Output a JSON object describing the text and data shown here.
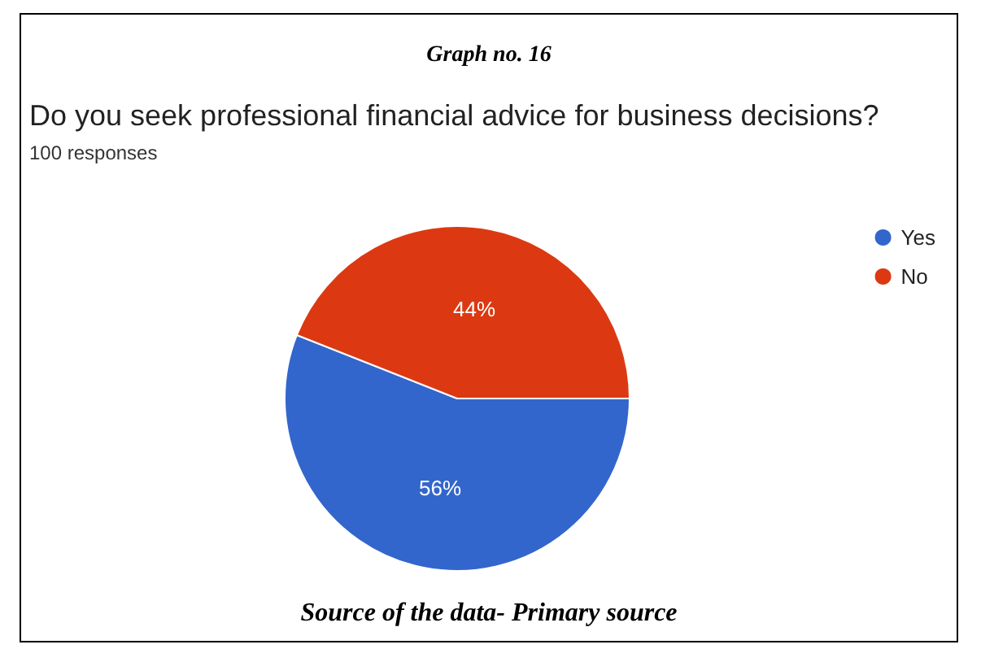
{
  "chart_data": {
    "type": "pie",
    "title": "Do you seek professional financial advice for business decisions?",
    "subtitle": "100 responses",
    "annotations": [
      "Graph no. 16",
      "Source of the data- Primary source"
    ],
    "categories": [
      "Yes",
      "No"
    ],
    "values": [
      56,
      44
    ],
    "colors": [
      "#3366cc",
      "#dc3912"
    ],
    "value_labels": [
      "56%",
      "44%"
    ],
    "legend": "top right"
  }
}
